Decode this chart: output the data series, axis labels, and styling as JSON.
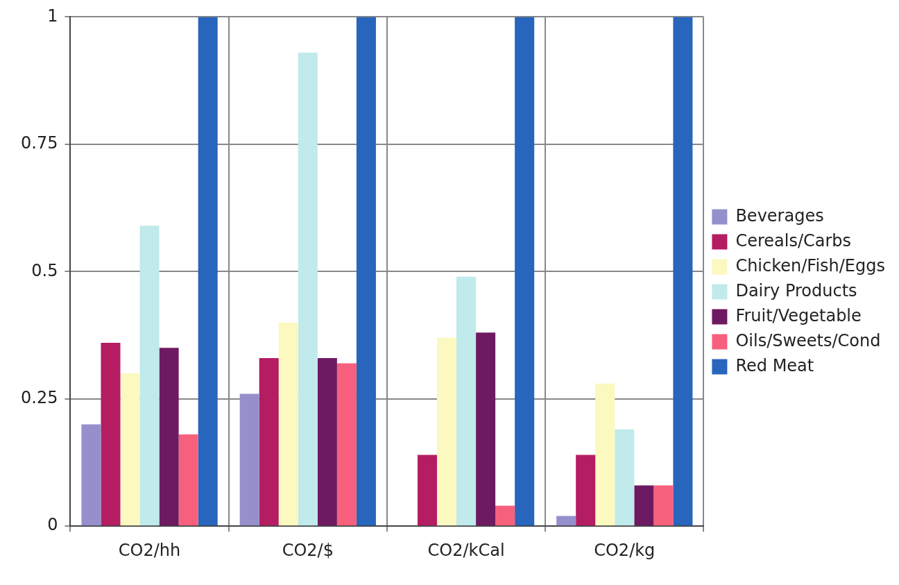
{
  "chart_data": {
    "type": "bar",
    "categories": [
      "CO2/hh",
      "CO2/$",
      "CO2/kCal",
      "CO2/kg"
    ],
    "series": [
      {
        "name": "Beverages",
        "color": "#9590cc",
        "values": [
          0.2,
          0.26,
          0,
          0.02
        ]
      },
      {
        "name": "Cereals/Carbs",
        "color": "#b51d63",
        "values": [
          0.36,
          0.33,
          0.14,
          0.14
        ]
      },
      {
        "name": "Chicken/Fish/Eggs",
        "color": "#fbf8c0",
        "values": [
          0.3,
          0.4,
          0.37,
          0.28
        ]
      },
      {
        "name": "Dairy Products",
        "color": "#c0eaeb",
        "values": [
          0.59,
          0.93,
          0.49,
          0.19
        ]
      },
      {
        "name": "Fruit/Vegetable",
        "color": "#6e1a62",
        "values": [
          0.35,
          0.33,
          0.38,
          0.08
        ]
      },
      {
        "name": "Oils/Sweets/Cond",
        "color": "#f6607c",
        "values": [
          0.18,
          0.32,
          0.04,
          0.08
        ]
      },
      {
        "name": "Red Meat",
        "color": "#2865bc",
        "values": [
          1,
          1,
          1,
          1
        ]
      }
    ],
    "ylim": [
      0,
      1
    ],
    "yticks": [
      0,
      0.25,
      0.5,
      0.75,
      1
    ],
    "grid": true,
    "legend": "right"
  }
}
